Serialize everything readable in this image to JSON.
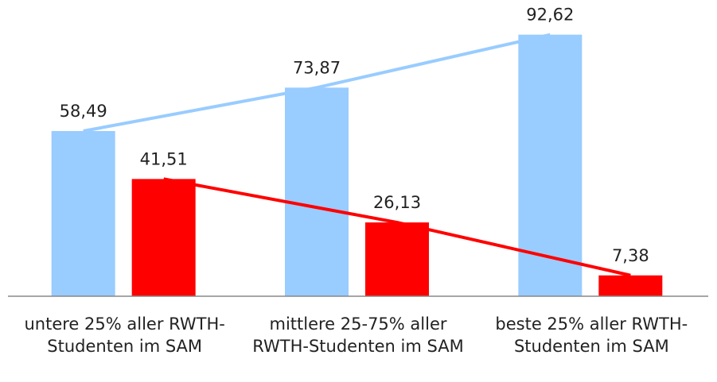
{
  "chart_data": {
    "type": "bar",
    "categories": [
      "untere 25% aller RWTH-Studenten im SAM",
      "mittlere 25-75% aller RWTH-Studenten im SAM",
      "beste 25% aller RWTH-Studenten im SAM"
    ],
    "series": [
      {
        "color": "#99ccff",
        "values": [
          58.49,
          73.87,
          92.62
        ],
        "value_labels": [
          "58,49",
          "73,87",
          "92,62"
        ]
      },
      {
        "color": "#ff0000",
        "values": [
          41.51,
          26.13,
          7.38
        ],
        "value_labels": [
          "41,51",
          "26,13",
          "7,38"
        ]
      }
    ],
    "ylim": [
      0,
      100
    ]
  }
}
